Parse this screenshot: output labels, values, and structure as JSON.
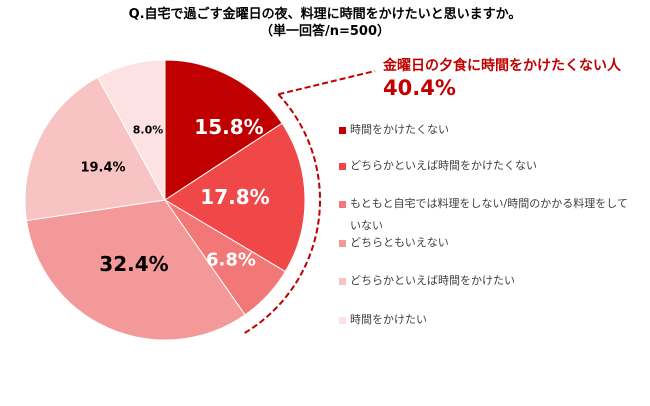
{
  "chart_data": {
    "type": "pie",
    "title": "Q.自宅で過ごす金曜日の夜、料理に時間をかけたいと思いますか。",
    "subtitle": "（単一回答/n=500）",
    "categories": [
      "時間をかけたくない",
      "どちらかといえば時間をかけたくない",
      "もともと自宅では料理をしない/時間のかかる料理をしていない",
      "どちらともいえない",
      "どちらかといえば時間をかけたい",
      "時間をかけたい"
    ],
    "values": [
      15.8,
      17.8,
      6.8,
      32.4,
      19.4,
      8.0
    ],
    "value_labels": [
      "15.8%",
      "17.8%",
      "6.8%",
      "32.4%",
      "19.4%",
      "8.0%"
    ],
    "colors": [
      "#C00000",
      "#F04848",
      "#F27777",
      "#F49999",
      "#F8C3C3",
      "#FCE2E2"
    ],
    "legend_position": "right",
    "annotation": {
      "label": "金曜日の夕食に時間をかけたくない人",
      "value": "40.4%"
    }
  }
}
